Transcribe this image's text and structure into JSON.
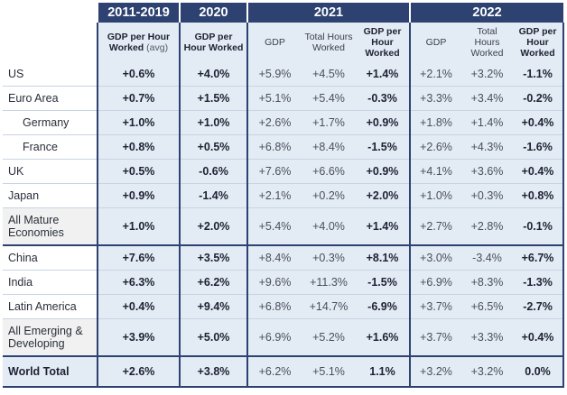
{
  "chart_data": {
    "type": "table",
    "header_groups": [
      "2011-2019",
      "2020",
      "2021",
      "2022"
    ],
    "subheaders": {
      "p2011_2019": {
        "main": "GDP per Hour Worked",
        "note": "(avg)"
      },
      "p2020": "GDP per Hour Worked",
      "p2021": [
        "GDP",
        "Total Hours Worked",
        "GDP per Hour Worked"
      ],
      "p2022": [
        "GDP",
        "Total Hours Worked",
        "GDP per Hour Worked"
      ]
    },
    "rows": [
      {
        "label": "US",
        "values": [
          "+0.6%",
          "+4.0%",
          "+5.9%",
          "+4.5%",
          "+1.4%",
          "+2.1%",
          "+3.2%",
          "-1.1%"
        ]
      },
      {
        "label": "Euro Area",
        "values": [
          "+0.7%",
          "+1.5%",
          "+5.1%",
          "+5.4%",
          "-0.3%",
          "+3.3%",
          "+3.4%",
          "-0.2%"
        ]
      },
      {
        "label": "Germany",
        "values": [
          "+1.0%",
          "+1.0%",
          "+2.6%",
          "+1.7%",
          "+0.9%",
          "+1.8%",
          "+1.4%",
          "+0.4%"
        ]
      },
      {
        "label": "France",
        "values": [
          "+0.8%",
          "+0.5%",
          "+6.8%",
          "+8.4%",
          "-1.5%",
          "+2.6%",
          "+4.3%",
          "-1.6%"
        ]
      },
      {
        "label": "UK",
        "values": [
          "+0.5%",
          "-0.6%",
          "+7.6%",
          "+6.6%",
          "+0.9%",
          "+4.1%",
          "+3.6%",
          "+0.4%"
        ]
      },
      {
        "label": "Japan",
        "values": [
          "+0.9%",
          "-1.4%",
          "+2.1%",
          "+0.2%",
          "+2.0%",
          "+1.0%",
          "+0.3%",
          "+0.8%"
        ]
      },
      {
        "label": "All Mature Economies",
        "values": [
          "+1.0%",
          "+2.0%",
          "+5.4%",
          "+4.0%",
          "+1.4%",
          "+2.7%",
          "+2.8%",
          "-0.1%"
        ]
      },
      {
        "label": "China",
        "values": [
          "+7.6%",
          "+3.5%",
          "+8.4%",
          "+0.3%",
          "+8.1%",
          "+3.0%",
          "-3.4%",
          "+6.7%"
        ]
      },
      {
        "label": "India",
        "values": [
          "+6.3%",
          "+6.2%",
          "+9.6%",
          "+11.3%",
          "-1.5%",
          "+6.9%",
          "+8.3%",
          "-1.3%"
        ]
      },
      {
        "label": "Latin America",
        "values": [
          "+0.4%",
          "+9.4%",
          "+6.8%",
          "+14.7%",
          "-6.9%",
          "+3.7%",
          "+6.5%",
          "-2.7%"
        ]
      },
      {
        "label": "All Emerging & Developing",
        "values": [
          "+3.9%",
          "+5.0%",
          "+6.9%",
          "+5.2%",
          "+1.6%",
          "+3.7%",
          "+3.3%",
          "+0.4%"
        ]
      },
      {
        "label": "World Total",
        "values": [
          "+2.6%",
          "+3.8%",
          "+6.2%",
          "+5.1%",
          "1.1%",
          "+3.2%",
          "+3.2%",
          "0.0%"
        ]
      }
    ]
  },
  "colors": {
    "header": "#2d4270",
    "cell": "#e3ebf5",
    "aggregate_label": "#f1f1f1"
  }
}
